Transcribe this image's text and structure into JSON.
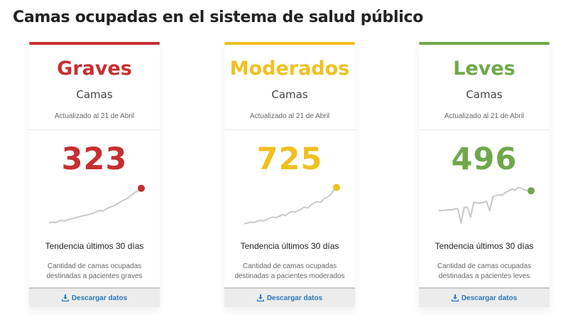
{
  "page": {
    "title": "Camas ocupadas en el sistema de salud público"
  },
  "cards": [
    {
      "heading": "Graves",
      "subtitle": "Camas",
      "updated": "Actualizado al 21 de Abril",
      "value": "323",
      "trend_label": "Tendencia últimos 30 días",
      "description": "Cantidad de camas ocupadas destinadas a pacientes graves",
      "download_label": "Descargar datos",
      "color": "#c62f2f",
      "trend": [
        0.06,
        0.08,
        0.07,
        0.1,
        0.12,
        0.11,
        0.14,
        0.16,
        0.18,
        0.2,
        0.22,
        0.24,
        0.25,
        0.28,
        0.3,
        0.34,
        0.36,
        0.35,
        0.4,
        0.44,
        0.46,
        0.5,
        0.55,
        0.6,
        0.63,
        0.68,
        0.74,
        0.8,
        0.84,
        0.9
      ]
    },
    {
      "heading": "Moderados",
      "subtitle": "Camas",
      "updated": "Actualizado al 21 de Abril",
      "value": "725",
      "trend_label": "Tendencia últimos 30 días",
      "description": "Cantidad de camas ocupadas destinadas a pacientes moderados",
      "download_label": "Descargar datos",
      "color": "#f0c020",
      "trend": [
        0.04,
        0.06,
        0.08,
        0.07,
        0.1,
        0.12,
        0.11,
        0.14,
        0.18,
        0.2,
        0.19,
        0.22,
        0.26,
        0.24,
        0.3,
        0.34,
        0.32,
        0.36,
        0.4,
        0.45,
        0.42,
        0.5,
        0.55,
        0.58,
        0.56,
        0.64,
        0.68,
        0.74,
        0.84,
        0.92
      ]
    },
    {
      "heading": "Leves",
      "subtitle": "Camas",
      "updated": "Actualizado al 21 de Abril",
      "value": "496",
      "trend_label": "Tendencia últimos 30 días",
      "description": "Cantidad de camas ocupadas destinadas a pacientes leves",
      "download_label": "Descargar datos",
      "color": "#6fa84a",
      "trend": [
        0.36,
        0.36,
        0.37,
        0.38,
        0.38,
        0.4,
        0.4,
        0.06,
        0.44,
        0.44,
        0.2,
        0.56,
        0.55,
        0.54,
        0.56,
        0.58,
        0.36,
        0.7,
        0.72,
        0.74,
        0.74,
        0.8,
        0.84,
        0.88,
        0.86,
        0.92,
        0.9,
        0.86,
        0.84,
        0.84
      ]
    }
  ]
}
